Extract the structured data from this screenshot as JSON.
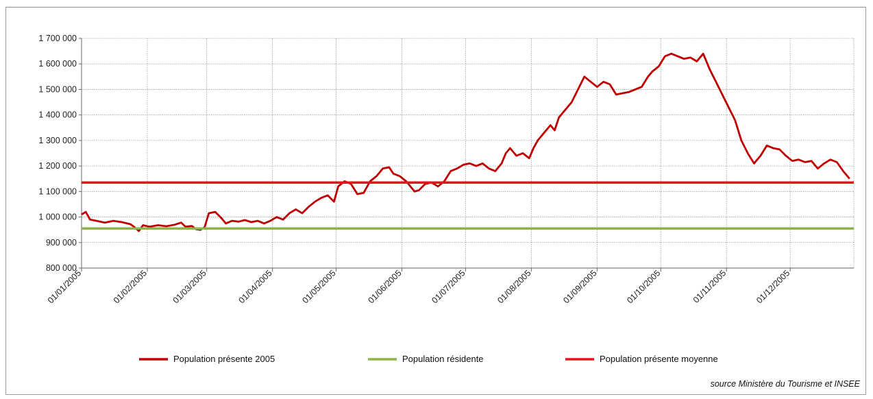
{
  "chart_data": {
    "type": "line",
    "title": "",
    "xlabel": "",
    "ylabel": "",
    "ylim": [
      800000,
      1700000
    ],
    "grid": true,
    "x_tick_labels": [
      "01/01/2005",
      "01/02/2005",
      "01/03/2005",
      "01/04/2005",
      "01/05/2005",
      "01/06/2005",
      "01/07/2005",
      "01/08/2005",
      "01/09/2005",
      "01/10/2005",
      "01/11/2005",
      "01/12/2005"
    ],
    "y_tick_values": [
      800000,
      900000,
      1000000,
      1100000,
      1200000,
      1300000,
      1400000,
      1500000,
      1600000,
      1700000
    ],
    "y_tick_labels": [
      "800 000",
      "900 000",
      "1 000 000",
      "1 100 000",
      "1 200 000",
      "1 300 000",
      "1 400 000",
      "1 500 000",
      "1 600 000",
      "1 700 000"
    ],
    "series": [
      {
        "name": "Population présente 2005",
        "color": "#c00000",
        "points": [
          [
            "2005-01-01",
            1010000
          ],
          [
            "2005-01-03",
            1020000
          ],
          [
            "2005-01-05",
            990000
          ],
          [
            "2005-01-08",
            985000
          ],
          [
            "2005-01-12",
            978000
          ],
          [
            "2005-01-16",
            985000
          ],
          [
            "2005-01-20",
            980000
          ],
          [
            "2005-01-24",
            972000
          ],
          [
            "2005-01-26",
            960000
          ],
          [
            "2005-01-28",
            945000
          ],
          [
            "2005-01-30",
            968000
          ],
          [
            "2005-02-02",
            962000
          ],
          [
            "2005-02-06",
            968000
          ],
          [
            "2005-02-10",
            964000
          ],
          [
            "2005-02-14",
            970000
          ],
          [
            "2005-02-17",
            978000
          ],
          [
            "2005-02-19",
            962000
          ],
          [
            "2005-02-22",
            965000
          ],
          [
            "2005-02-24",
            952000
          ],
          [
            "2005-02-26",
            950000
          ],
          [
            "2005-02-28",
            960000
          ],
          [
            "2005-03-02",
            1015000
          ],
          [
            "2005-03-05",
            1020000
          ],
          [
            "2005-03-08",
            995000
          ],
          [
            "2005-03-10",
            975000
          ],
          [
            "2005-03-13",
            985000
          ],
          [
            "2005-03-16",
            982000
          ],
          [
            "2005-03-19",
            988000
          ],
          [
            "2005-03-22",
            980000
          ],
          [
            "2005-03-25",
            985000
          ],
          [
            "2005-03-28",
            975000
          ],
          [
            "2005-03-31",
            985000
          ],
          [
            "2005-04-03",
            1000000
          ],
          [
            "2005-04-06",
            990000
          ],
          [
            "2005-04-09",
            1015000
          ],
          [
            "2005-04-12",
            1030000
          ],
          [
            "2005-04-15",
            1015000
          ],
          [
            "2005-04-18",
            1040000
          ],
          [
            "2005-04-21",
            1060000
          ],
          [
            "2005-04-24",
            1075000
          ],
          [
            "2005-04-27",
            1085000
          ],
          [
            "2005-04-30",
            1060000
          ],
          [
            "2005-05-02",
            1120000
          ],
          [
            "2005-05-05",
            1140000
          ],
          [
            "2005-05-08",
            1130000
          ],
          [
            "2005-05-11",
            1090000
          ],
          [
            "2005-05-14",
            1095000
          ],
          [
            "2005-05-17",
            1140000
          ],
          [
            "2005-05-20",
            1160000
          ],
          [
            "2005-05-23",
            1190000
          ],
          [
            "2005-05-26",
            1195000
          ],
          [
            "2005-05-28",
            1170000
          ],
          [
            "2005-05-31",
            1160000
          ],
          [
            "2005-06-03",
            1140000
          ],
          [
            "2005-06-05",
            1120000
          ],
          [
            "2005-06-07",
            1100000
          ],
          [
            "2005-06-09",
            1105000
          ],
          [
            "2005-06-12",
            1130000
          ],
          [
            "2005-06-15",
            1135000
          ],
          [
            "2005-06-18",
            1120000
          ],
          [
            "2005-06-21",
            1140000
          ],
          [
            "2005-06-24",
            1180000
          ],
          [
            "2005-06-27",
            1190000
          ],
          [
            "2005-06-30",
            1205000
          ],
          [
            "2005-07-03",
            1210000
          ],
          [
            "2005-07-06",
            1200000
          ],
          [
            "2005-07-09",
            1210000
          ],
          [
            "2005-07-12",
            1190000
          ],
          [
            "2005-07-15",
            1180000
          ],
          [
            "2005-07-18",
            1210000
          ],
          [
            "2005-07-20",
            1250000
          ],
          [
            "2005-07-22",
            1270000
          ],
          [
            "2005-07-25",
            1240000
          ],
          [
            "2005-07-28",
            1250000
          ],
          [
            "2005-07-31",
            1230000
          ],
          [
            "2005-08-02",
            1270000
          ],
          [
            "2005-08-04",
            1300000
          ],
          [
            "2005-08-07",
            1330000
          ],
          [
            "2005-08-10",
            1360000
          ],
          [
            "2005-08-12",
            1340000
          ],
          [
            "2005-08-14",
            1390000
          ],
          [
            "2005-08-17",
            1420000
          ],
          [
            "2005-08-20",
            1450000
          ],
          [
            "2005-08-23",
            1500000
          ],
          [
            "2005-08-26",
            1550000
          ],
          [
            "2005-08-29",
            1530000
          ],
          [
            "2005-09-01",
            1510000
          ],
          [
            "2005-09-04",
            1530000
          ],
          [
            "2005-09-07",
            1520000
          ],
          [
            "2005-09-10",
            1480000
          ],
          [
            "2005-09-13",
            1485000
          ],
          [
            "2005-09-16",
            1490000
          ],
          [
            "2005-09-19",
            1500000
          ],
          [
            "2005-09-22",
            1510000
          ],
          [
            "2005-09-25",
            1550000
          ],
          [
            "2005-09-27",
            1570000
          ],
          [
            "2005-09-30",
            1590000
          ],
          [
            "2005-10-03",
            1630000
          ],
          [
            "2005-10-06",
            1640000
          ],
          [
            "2005-10-09",
            1630000
          ],
          [
            "2005-10-12",
            1620000
          ],
          [
            "2005-10-15",
            1625000
          ],
          [
            "2005-10-18",
            1610000
          ],
          [
            "2005-10-21",
            1640000
          ],
          [
            "2005-10-24",
            1580000
          ],
          [
            "2005-10-27",
            1530000
          ],
          [
            "2005-10-30",
            1480000
          ],
          [
            "2005-11-02",
            1430000
          ],
          [
            "2005-11-05",
            1380000
          ],
          [
            "2005-11-08",
            1300000
          ],
          [
            "2005-11-11",
            1250000
          ],
          [
            "2005-11-14",
            1210000
          ],
          [
            "2005-11-17",
            1240000
          ],
          [
            "2005-11-20",
            1280000
          ],
          [
            "2005-11-23",
            1270000
          ],
          [
            "2005-11-26",
            1265000
          ],
          [
            "2005-11-29",
            1240000
          ],
          [
            "2005-12-02",
            1220000
          ],
          [
            "2005-12-05",
            1225000
          ],
          [
            "2005-12-08",
            1215000
          ],
          [
            "2005-12-11",
            1220000
          ],
          [
            "2005-12-14",
            1190000
          ],
          [
            "2005-12-17",
            1210000
          ],
          [
            "2005-12-20",
            1225000
          ],
          [
            "2005-12-23",
            1215000
          ],
          [
            "2005-12-26",
            1180000
          ],
          [
            "2005-12-29",
            1150000
          ]
        ]
      },
      {
        "name": "Population résidente",
        "color": "#8db44a",
        "points": [
          [
            "2005-01-01",
            955000
          ],
          [
            "2005-12-31",
            955000
          ]
        ]
      },
      {
        "name": "Population présente moyenne",
        "color": "#e8141c",
        "points": [
          [
            "2005-01-01",
            1135000
          ],
          [
            "2005-12-31",
            1135000
          ]
        ]
      }
    ]
  },
  "source": "source Ministère du Tourisme et INSEE"
}
